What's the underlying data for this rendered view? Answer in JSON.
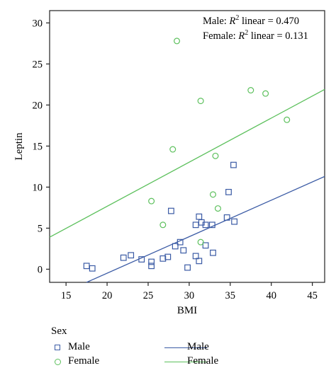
{
  "chart_data": {
    "type": "scatter",
    "xlabel": "BMI",
    "ylabel": "Leptin",
    "xlim": [
      13,
      46.5
    ],
    "ylim": [
      -1.6,
      31.5
    ],
    "xticks": [
      15,
      20,
      25,
      30,
      35,
      40,
      45
    ],
    "yticks": [
      0,
      5,
      10,
      15,
      20,
      25,
      30
    ],
    "annotations": {
      "male": {
        "prefix": "Male: ",
        "r": "R",
        "sup": "2",
        "suffix": " linear = 0.470"
      },
      "female": {
        "prefix": "Female: ",
        "r": "R",
        "sup": "2",
        "suffix": " linear = 0.131"
      }
    },
    "legend_title": "Sex",
    "series": [
      {
        "name": "Male",
        "color": "#3b5ba5",
        "marker": "square",
        "points": [
          [
            17.5,
            0.4
          ],
          [
            18.2,
            0.1
          ],
          [
            22.0,
            1.4
          ],
          [
            22.9,
            1.7
          ],
          [
            24.2,
            1.2
          ],
          [
            25.4,
            0.9
          ],
          [
            25.4,
            0.4
          ],
          [
            26.8,
            1.3
          ],
          [
            27.4,
            1.5
          ],
          [
            27.8,
            7.1
          ],
          [
            28.3,
            2.8
          ],
          [
            28.9,
            3.3
          ],
          [
            29.3,
            2.3
          ],
          [
            29.8,
            0.2
          ],
          [
            30.8,
            5.4
          ],
          [
            30.8,
            1.6
          ],
          [
            31.2,
            6.4
          ],
          [
            31.2,
            1.0
          ],
          [
            31.5,
            5.7
          ],
          [
            32.0,
            5.4
          ],
          [
            32.0,
            2.9
          ],
          [
            32.8,
            5.4
          ],
          [
            32.9,
            2.0
          ],
          [
            34.6,
            6.3
          ],
          [
            34.8,
            9.4
          ],
          [
            35.4,
            12.7
          ],
          [
            35.5,
            5.8
          ]
        ],
        "fit": {
          "x": [
            17.5,
            46.5
          ],
          "y": [
            -1.6,
            11.3
          ]
        }
      },
      {
        "name": "Female",
        "color": "#5cc05c",
        "marker": "circle",
        "points": [
          [
            25.4,
            8.3
          ],
          [
            26.8,
            5.4
          ],
          [
            28.0,
            14.6
          ],
          [
            28.5,
            27.8
          ],
          [
            31.4,
            20.5
          ],
          [
            31.4,
            3.3
          ],
          [
            32.9,
            9.1
          ],
          [
            33.2,
            13.8
          ],
          [
            33.5,
            7.4
          ],
          [
            37.5,
            21.8
          ],
          [
            39.3,
            21.4
          ],
          [
            41.9,
            18.2
          ]
        ],
        "fit": {
          "x": [
            13.0,
            46.5
          ],
          "y": [
            3.9,
            21.9
          ]
        }
      }
    ],
    "legend": {
      "marker_entries": [
        "Male",
        "Female"
      ],
      "line_entries": [
        "Male",
        "Female"
      ],
      "placement": "bottom"
    }
  }
}
